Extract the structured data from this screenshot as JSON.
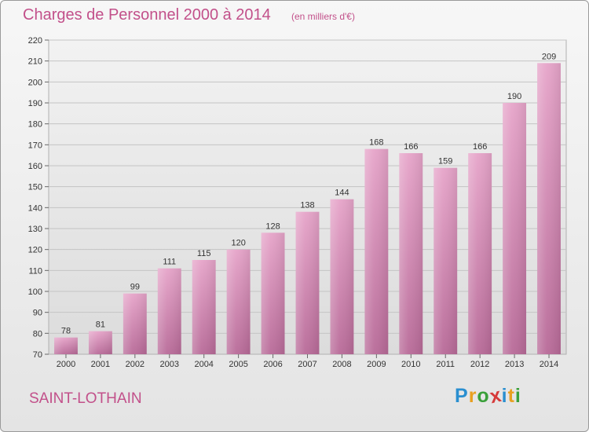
{
  "header": {
    "title": "Charges de Personnel 2000 à 2014",
    "subtitle": "(en milliers d'€)"
  },
  "footer": {
    "commune": "SAINT-LOTHAIN",
    "logo_letters": [
      "P",
      "r",
      "o",
      "x",
      "i",
      "t",
      "i"
    ],
    "logo_colors": [
      "#2a8fd0",
      "#e8a020",
      "#3aa03a",
      "#d63a3a",
      "#2a8fd0",
      "#e8a020",
      "#3aa03a"
    ]
  },
  "chart_data": {
    "type": "bar",
    "title": "Charges de Personnel 2000 à 2014",
    "subtitle": "(en milliers d'€)",
    "categories": [
      "2000",
      "2001",
      "2002",
      "2003",
      "2004",
      "2005",
      "2006",
      "2007",
      "2008",
      "2009",
      "2010",
      "2011",
      "2012",
      "2013",
      "2014"
    ],
    "values": [
      78,
      81,
      99,
      111,
      115,
      120,
      128,
      138,
      144,
      168,
      166,
      159,
      166,
      190,
      209
    ],
    "data_labels": [
      "78",
      "81",
      "99",
      "111",
      "115",
      "120",
      "128",
      "138",
      "144",
      "168",
      "166",
      "159",
      "166",
      "190",
      "209"
    ],
    "ylim": [
      70,
      220
    ],
    "yticks": [
      70,
      80,
      90,
      100,
      110,
      120,
      130,
      140,
      150,
      160,
      170,
      180,
      190,
      200,
      210,
      220
    ],
    "ytick_labels": [
      "70",
      "80",
      "90",
      "100",
      "110",
      "120",
      "130",
      "140",
      "150",
      "160",
      "170",
      "180",
      "190",
      "200",
      "210",
      "220"
    ],
    "grid": true,
    "bar_color": "#d887b5"
  }
}
